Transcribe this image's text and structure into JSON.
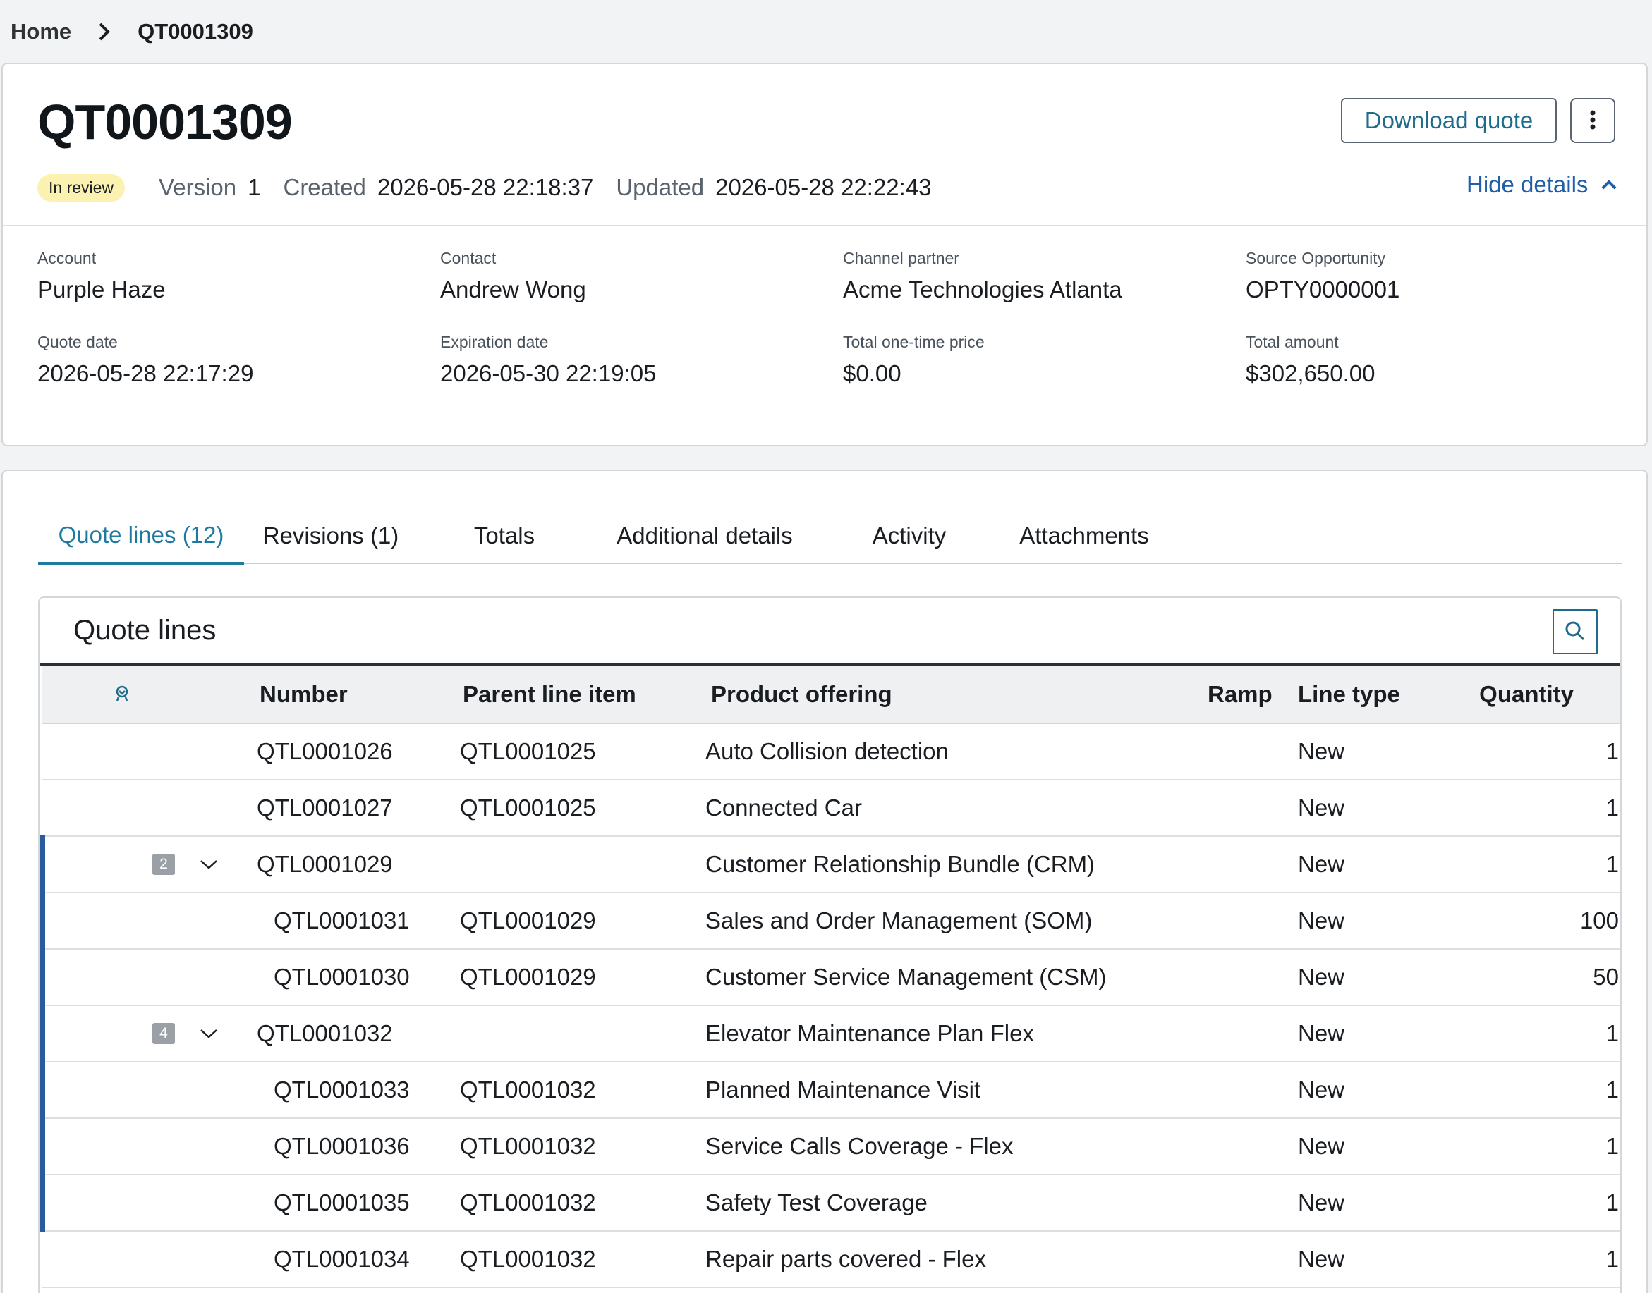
{
  "breadcrumb": {
    "home": "Home",
    "current": "QT0001309"
  },
  "header": {
    "title": "QT0001309",
    "download_label": "Download quote",
    "status": "In review",
    "version_label": "Version",
    "version_value": "1",
    "created_label": "Created",
    "created_value": "2026-05-28 22:18:37",
    "updated_label": "Updated",
    "updated_value": "2026-05-28 22:22:43",
    "hide_details_label": "Hide details"
  },
  "fields": [
    {
      "label": "Account",
      "value": "Purple Haze"
    },
    {
      "label": "Contact",
      "value": "Andrew Wong"
    },
    {
      "label": "Channel partner",
      "value": "Acme Technologies Atlanta"
    },
    {
      "label": "Source Opportunity",
      "value": "OPTY0000001"
    },
    {
      "label": "Quote date",
      "value": "2026-05-28 22:17:29"
    },
    {
      "label": "Expiration date",
      "value": "2026-05-30 22:19:05"
    },
    {
      "label": "Total one-time price",
      "value": "$0.00"
    },
    {
      "label": "Total amount",
      "value": "$302,650.00"
    }
  ],
  "tabs": [
    {
      "label": "Quote lines (12)",
      "active": true
    },
    {
      "label": "Revisions (1)",
      "active": false
    },
    {
      "label": "Totals",
      "active": false
    },
    {
      "label": "Additional details",
      "active": false
    },
    {
      "label": "Activity",
      "active": false
    },
    {
      "label": "Attachments",
      "active": false
    }
  ],
  "quote_lines": {
    "title": "Quote lines",
    "columns": {
      "number": "Number",
      "parent": "Parent line item",
      "product": "Product offering",
      "ramp": "Ramp",
      "line_type": "Line type",
      "quantity": "Quantity"
    },
    "rows": [
      {
        "number": "QTL0001026",
        "parent": "QTL0001025",
        "product": "Auto Collision detection",
        "ramp": "",
        "line_type": "New",
        "quantity": "1",
        "group": false,
        "child": false,
        "count": ""
      },
      {
        "number": "QTL0001027",
        "parent": "QTL0001025",
        "product": "Connected Car",
        "ramp": "",
        "line_type": "New",
        "quantity": "1",
        "group": false,
        "child": false,
        "count": ""
      },
      {
        "number": "QTL0001029",
        "parent": "",
        "product": "Customer Relationship Bundle (CRM)",
        "ramp": "",
        "line_type": "New",
        "quantity": "1",
        "group": true,
        "child": false,
        "count": "2"
      },
      {
        "number": "QTL0001031",
        "parent": "QTL0001029",
        "product": "Sales and Order Management (SOM)",
        "ramp": "",
        "line_type": "New",
        "quantity": "100",
        "group": true,
        "child": true,
        "count": ""
      },
      {
        "number": "QTL0001030",
        "parent": "QTL0001029",
        "product": "Customer Service Management (CSM)",
        "ramp": "",
        "line_type": "New",
        "quantity": "50",
        "group": true,
        "child": true,
        "count": ""
      },
      {
        "number": "QTL0001032",
        "parent": "",
        "product": "Elevator Maintenance Plan Flex",
        "ramp": "",
        "line_type": "New",
        "quantity": "1",
        "group": true,
        "child": false,
        "count": "4"
      },
      {
        "number": "QTL0001033",
        "parent": "QTL0001032",
        "product": "Planned Maintenance Visit",
        "ramp": "",
        "line_type": "New",
        "quantity": "1",
        "group": true,
        "child": true,
        "count": ""
      },
      {
        "number": "QTL0001036",
        "parent": "QTL0001032",
        "product": "Service Calls Coverage - Flex",
        "ramp": "",
        "line_type": "New",
        "quantity": "1",
        "group": true,
        "child": true,
        "count": ""
      },
      {
        "number": "QTL0001035",
        "parent": "QTL0001032",
        "product": "Safety Test Coverage",
        "ramp": "",
        "line_type": "New",
        "quantity": "1",
        "group": true,
        "child": true,
        "count": ""
      },
      {
        "number": "QTL0001034",
        "parent": "QTL0001032",
        "product": "Repair parts covered - Flex",
        "ramp": "",
        "line_type": "New",
        "quantity": "1",
        "group": false,
        "child": true,
        "count": ""
      }
    ]
  },
  "colors": {
    "accent": "#1f7aa0",
    "link": "#1f5fa8",
    "badge_bg": "#fbf1b1",
    "group_bar": "#2a5b9f"
  },
  "icons": {
    "breadcrumb_separator": "chevron-right-icon",
    "more": "kebab-menu-icon",
    "hide": "chevron-up-icon",
    "search": "search-icon",
    "expand": "chevron-down-icon",
    "column_settings": "column-settings-icon"
  }
}
